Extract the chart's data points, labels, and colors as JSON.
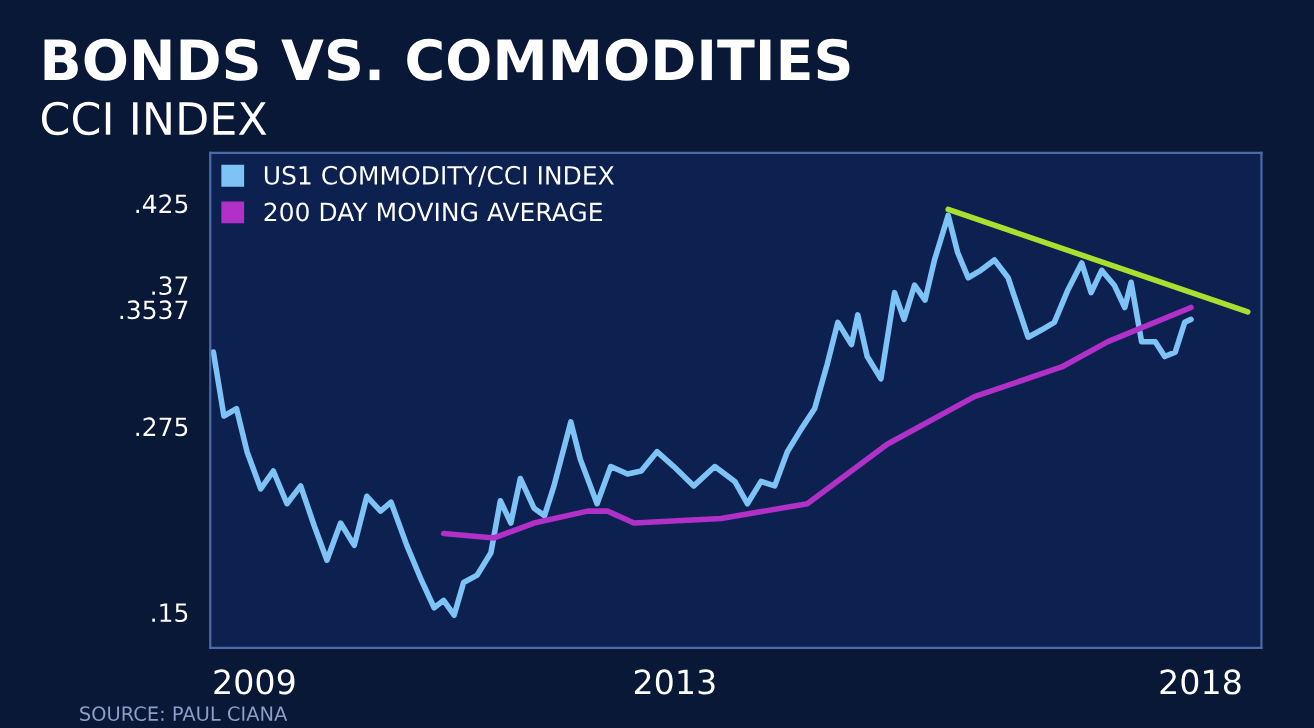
{
  "chart_data": {
    "type": "line",
    "title": "BONDS VS. COMMODITIES",
    "subtitle": "CCI INDEX",
    "annotations": [
      "SOURCE: PAUL CIANA"
    ],
    "xlim": [
      2008.58,
      2018.58
    ],
    "xticks": [
      2009,
      2013,
      2018
    ],
    "ylim": [
      0.126,
      0.459
    ],
    "yticks": [
      {
        "value": 0.425,
        "label": ".425"
      },
      {
        "value": 0.37,
        "label": ".37"
      },
      {
        "value": 0.3537,
        "label": ".3537"
      },
      {
        "value": 0.275,
        "label": ".275"
      },
      {
        "value": 0.15,
        "label": ".15"
      }
    ],
    "legend": "top left",
    "grid": false,
    "series": [
      {
        "name": "US1 COMMODITY/CCI INDEX",
        "color": "#7ec3f5",
        "x": [
          2008.61,
          2008.71,
          2008.83,
          2008.93,
          2009.06,
          2009.18,
          2009.31,
          2009.44,
          2009.57,
          2009.69,
          2009.82,
          2009.95,
          2010.07,
          2010.2,
          2010.3,
          2010.45,
          2010.58,
          2010.71,
          2010.8,
          2010.9,
          2010.99,
          2011.12,
          2011.25,
          2011.34,
          2011.44,
          2011.53,
          2011.66,
          2011.76,
          2011.85,
          2012.01,
          2012.1,
          2012.26,
          2012.39,
          2012.55,
          2012.68,
          2012.83,
          2012.99,
          2013.18,
          2013.38,
          2013.57,
          2013.69,
          2013.82,
          2013.95,
          2014.07,
          2014.2,
          2014.33,
          2014.45,
          2014.55,
          2014.68,
          2014.74,
          2014.83,
          2014.96,
          2015.09,
          2015.18,
          2015.28,
          2015.38,
          2015.47,
          2015.6,
          2015.69,
          2015.79,
          2015.91,
          2016.04,
          2016.17,
          2016.36,
          2016.49,
          2016.61,
          2016.74,
          2016.87,
          2016.96,
          2017.06,
          2017.18,
          2017.28,
          2017.34,
          2017.44,
          2017.57,
          2017.66,
          2017.76,
          2017.85,
          2017.91
        ],
        "values": [
          0.325,
          0.282,
          0.287,
          0.258,
          0.233,
          0.245,
          0.223,
          0.235,
          0.208,
          0.185,
          0.21,
          0.195,
          0.228,
          0.218,
          0.224,
          0.195,
          0.173,
          0.153,
          0.158,
          0.148,
          0.17,
          0.175,
          0.19,
          0.225,
          0.21,
          0.24,
          0.22,
          0.215,
          0.235,
          0.278,
          0.253,
          0.223,
          0.248,
          0.243,
          0.245,
          0.258,
          0.248,
          0.235,
          0.248,
          0.238,
          0.223,
          0.238,
          0.235,
          0.258,
          0.273,
          0.287,
          0.317,
          0.345,
          0.33,
          0.35,
          0.322,
          0.307,
          0.365,
          0.347,
          0.37,
          0.36,
          0.387,
          0.417,
          0.392,
          0.375,
          0.38,
          0.387,
          0.375,
          0.335,
          0.34,
          0.345,
          0.367,
          0.385,
          0.365,
          0.38,
          0.37,
          0.355,
          0.372,
          0.332,
          0.332,
          0.322,
          0.325,
          0.345,
          0.347
        ]
      },
      {
        "name": "200 DAY MOVING AVERAGE",
        "color": "#b030c8",
        "x": [
          2010.8,
          2011.28,
          2011.66,
          2012.17,
          2012.36,
          2012.61,
          2013.44,
          2014.26,
          2015.02,
          2015.85,
          2016.68,
          2017.12,
          2017.91
        ],
        "values": [
          0.203,
          0.2,
          0.21,
          0.218,
          0.218,
          0.21,
          0.213,
          0.223,
          0.263,
          0.295,
          0.315,
          0.332,
          0.355
        ]
      },
      {
        "type": "line",
        "color": "#a8e030",
        "x": [
          2015.6,
          2018.45
        ],
        "values": [
          0.421,
          0.352
        ]
      }
    ]
  }
}
